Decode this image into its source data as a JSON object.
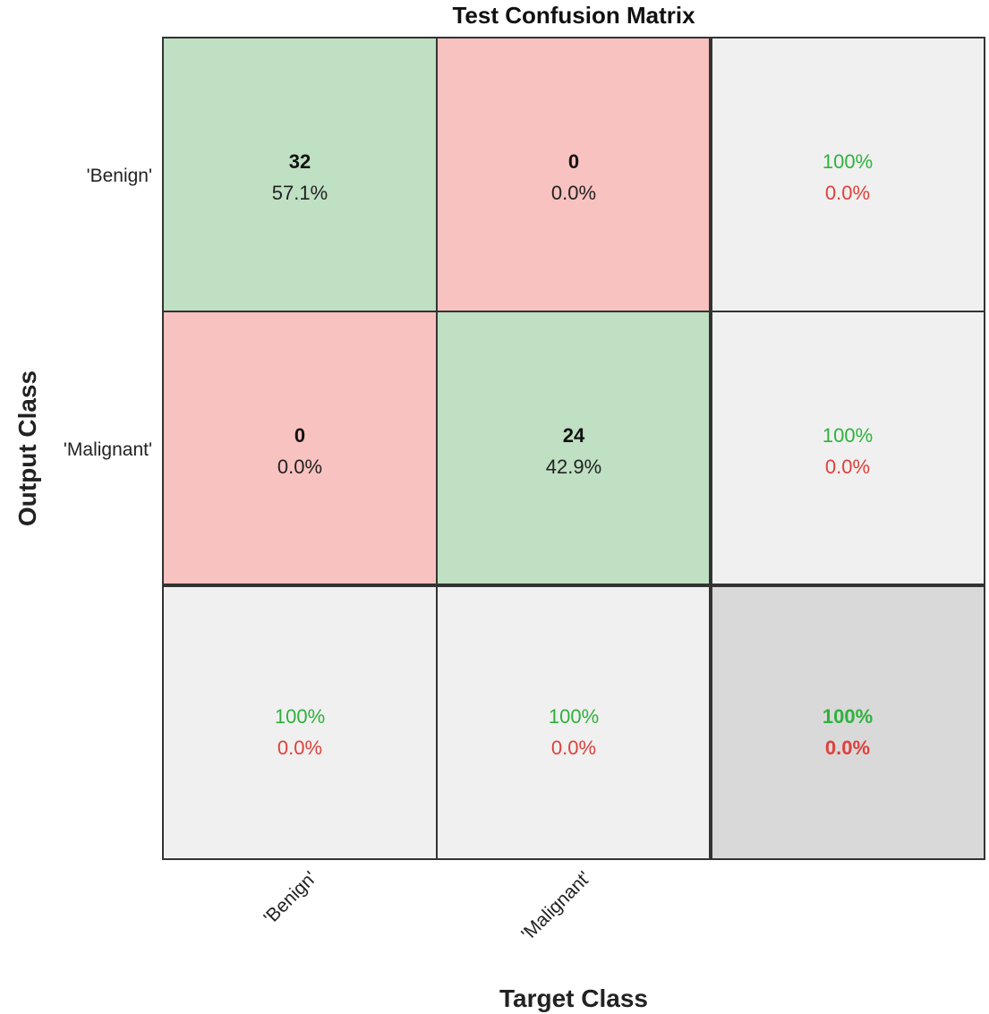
{
  "chart_data": {
    "type": "heatmap",
    "title": "Test Confusion Matrix",
    "xlabel": "Target Class",
    "ylabel": "Output Class",
    "x_categories": [
      "'Benign'",
      "'Malignant'"
    ],
    "y_categories": [
      "'Benign'",
      "'Malignant'"
    ],
    "counts": [
      [
        32,
        0
      ],
      [
        0,
        24
      ]
    ],
    "percentages": [
      [
        "57.1%",
        "0.0%"
      ],
      [
        "0.0%",
        "42.9%"
      ]
    ],
    "row_summary": [
      {
        "correct": "100%",
        "error": "0.0%"
      },
      {
        "correct": "100%",
        "error": "0.0%"
      }
    ],
    "column_summary": [
      {
        "correct": "100%",
        "error": "0.0%"
      },
      {
        "correct": "100%",
        "error": "0.0%"
      }
    ],
    "overall": {
      "correct": "100%",
      "error": "0.0%"
    },
    "colors": {
      "correct_cell": "#bfe0c3",
      "error_cell": "#f8c2c0",
      "summary_cell": "#f0f0f0",
      "overall_cell": "#d9d9d9",
      "correct_text": "#2fb13c",
      "error_text": "#e0403b",
      "grid_line": "#333333"
    }
  }
}
